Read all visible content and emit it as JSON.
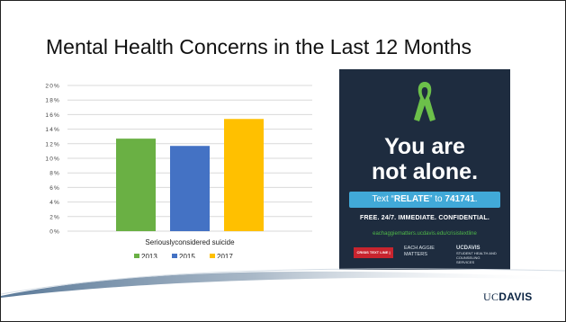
{
  "slide": {
    "title": "Mental Health Concerns in the Last 12 Months"
  },
  "chart_data": {
    "type": "bar",
    "categories": [
      "Seriouslyconsidered suicide"
    ],
    "series": [
      {
        "name": "2013",
        "values": [
          12.7
        ],
        "color": "#6ab044"
      },
      {
        "name": "2015",
        "values": [
          11.7
        ],
        "color": "#4472c4"
      },
      {
        "name": "2017",
        "values": [
          15.4
        ],
        "color": "#ffc000"
      }
    ],
    "ylim": [
      0,
      20
    ],
    "yticks": [
      "0%",
      "2%",
      "4%",
      "6%",
      "8%",
      "10%",
      "12%",
      "14%",
      "16%",
      "18%",
      "20%"
    ],
    "grid": true,
    "legend_placement": "bottom",
    "title": "",
    "xlabel": "",
    "ylabel": ""
  },
  "poster": {
    "headline_1": "You are",
    "headline_2": "not alone.",
    "text_prefix": "Text “",
    "text_keyword": "RELATE",
    "text_middle": "” to ",
    "text_number": "741741",
    "text_suffix": ".",
    "free_line": "FREE. 24/7. IMMEDIATE. CONFIDENTIAL.",
    "url": "eachaggiematters.ucdavis.edu/crisistextline",
    "logo_crisis": "CRISIS TEXT LINE |",
    "logo_aggie_1": "EACH AGGIE",
    "logo_aggie_2": "MATTERS",
    "logo_uc_1": "UCDAVIS",
    "logo_uc_2": "STUDENT HEALTH AND",
    "logo_uc_3": "COUNSELING SERVICES",
    "colors": {
      "background": "#1e2c3f",
      "ribbon": "#6cc04a",
      "banner": "#41a9d8"
    },
    "icon": "awareness-ribbon-icon"
  },
  "footer": {
    "brand_uc": "UC",
    "brand_davis": "DAVIS"
  }
}
